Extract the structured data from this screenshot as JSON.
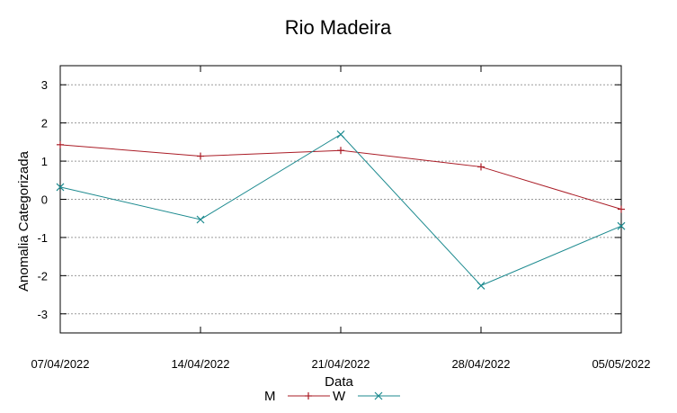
{
  "chart_data": {
    "type": "line",
    "title": "Rio Madeira",
    "xlabel": "Data",
    "ylabel": "Anomalia Categorizada",
    "categories": [
      "07/04/2022",
      "14/04/2022",
      "21/04/2022",
      "28/04/2022",
      "05/05/2022"
    ],
    "ylim": [
      -3.5,
      3.5
    ],
    "yticks": [
      "3",
      "2",
      "1",
      "0",
      "-1",
      "-2",
      "-3"
    ],
    "grid": true,
    "legend_position": "bottom",
    "series": [
      {
        "name": "M",
        "values": [
          1.43,
          1.13,
          1.28,
          0.85,
          -0.26
        ],
        "color": "#aa1c26",
        "marker": "plus"
      },
      {
        "name": "W",
        "values": [
          0.32,
          -0.53,
          1.7,
          -2.26,
          -0.7
        ],
        "color": "#1c8a8f",
        "marker": "cross"
      }
    ]
  }
}
